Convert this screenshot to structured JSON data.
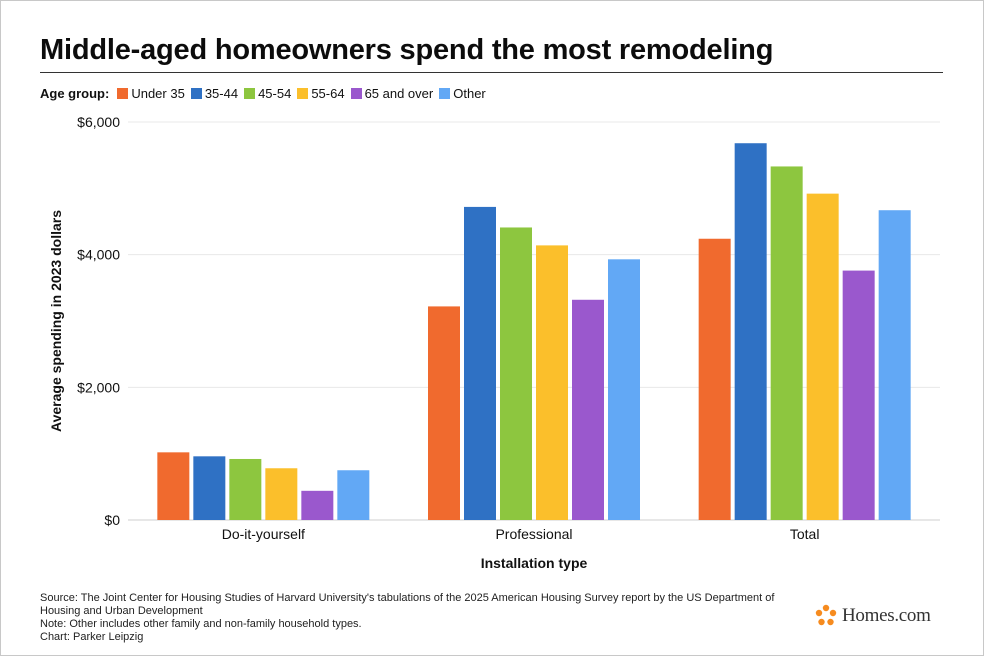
{
  "title": "Middle-aged homeowners spend the most remodeling",
  "legend": {
    "title": "Age group:"
  },
  "chart_data": {
    "type": "bar",
    "categories": [
      "Do-it-yourself",
      "Professional",
      "Total"
    ],
    "series": [
      {
        "name": "Under 35",
        "color": "#f06a2e",
        "values": [
          1020,
          3220,
          4240
        ]
      },
      {
        "name": "35-44",
        "color": "#2f71c4",
        "values": [
          960,
          4720,
          5680
        ]
      },
      {
        "name": "45-54",
        "color": "#8dc63f",
        "values": [
          920,
          4410,
          5330
        ]
      },
      {
        "name": "55-64",
        "color": "#fbbf2b",
        "values": [
          780,
          4140,
          4920
        ]
      },
      {
        "name": "65 and over",
        "color": "#9a58cd",
        "values": [
          440,
          3320,
          3760
        ]
      },
      {
        "name": "Other",
        "color": "#62a8f5",
        "values": [
          750,
          3930,
          4670
        ]
      }
    ],
    "ylim": [
      0,
      6000
    ],
    "yticks": [
      "$0",
      "$2,000",
      "$4,000",
      "$6,000"
    ],
    "ytick_values": [
      0,
      2000,
      4000,
      6000
    ],
    "xlabel": "Installation type",
    "ylabel": "Average spending in 2023 dollars",
    "grid": true,
    "legend_position": "top-left"
  },
  "footer": {
    "source": "Source: The Joint Center for Housing Studies of Harvard University's tabulations of the 2025 American Housing Survey report by the US Department of Housing and Urban Development",
    "note": "Note: Other includes other family and non-family household types.",
    "credit": "Chart: Parker Leipzig"
  },
  "brand": {
    "name": "Homes.com",
    "logo_color": "#f68b1f"
  }
}
